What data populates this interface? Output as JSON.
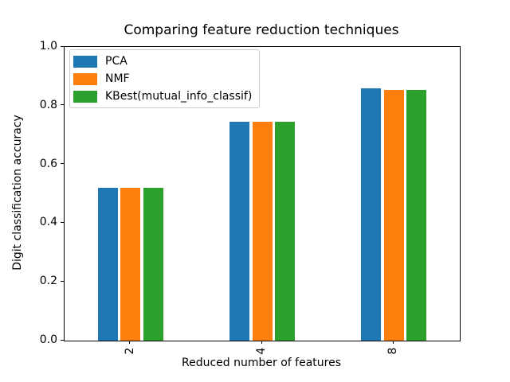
{
  "chart_data": {
    "type": "bar",
    "title": "Comparing feature reduction techniques",
    "xlabel": "Reduced number of features",
    "ylabel": "Digit classification accuracy",
    "categories": [
      "2",
      "4",
      "8"
    ],
    "series": [
      {
        "name": "PCA",
        "color": "#1f77b4",
        "values": [
          0.52,
          0.745,
          0.86
        ]
      },
      {
        "name": "NMF",
        "color": "#ff7f0e",
        "values": [
          0.52,
          0.745,
          0.855
        ]
      },
      {
        "name": "KBest(mutual_info_classif)",
        "color": "#2ca02c",
        "values": [
          0.52,
          0.745,
          0.855
        ]
      }
    ],
    "ylim": [
      0.0,
      1.0
    ],
    "yticks": [
      "0.0",
      "0.2",
      "0.4",
      "0.6",
      "0.8",
      "1.0"
    ],
    "xtick_rotation": 90,
    "legend_position": "upper left",
    "grid": false,
    "background_color": "#ffffff",
    "spine_color": "#000000"
  }
}
